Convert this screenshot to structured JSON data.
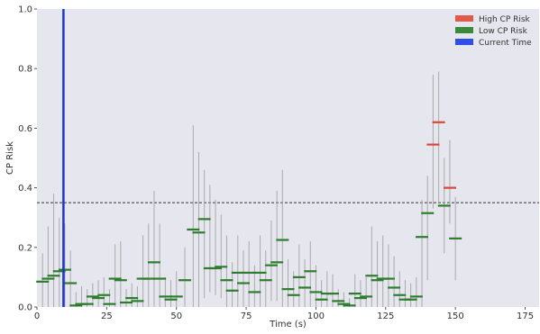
{
  "chart_data": {
    "type": "errorbar",
    "title": "",
    "xlabel": "Time (s)",
    "ylabel": "CP Risk",
    "xlim": [
      0,
      180
    ],
    "ylim": [
      0,
      1.0
    ],
    "grid": false,
    "background": "#e6e6ef",
    "legend_placement": "top-right",
    "x_ticks": [
      0,
      25,
      50,
      75,
      100,
      125,
      150,
      175
    ],
    "y_ticks": [
      0.0,
      0.2,
      0.4,
      0.6,
      0.8,
      1.0
    ],
    "x_tick_labels": [
      "0",
      "25",
      "50",
      "75",
      "100",
      "125",
      "150",
      "175"
    ],
    "y_tick_labels": [
      "0.0",
      "0.2",
      "0.4",
      "0.6",
      "0.8",
      "1.0"
    ],
    "threshold": {
      "value": 0.35,
      "style": "dashed",
      "color": "#333333"
    },
    "current_time": {
      "value": 9.5,
      "color": "#1f36c8"
    },
    "legend": [
      {
        "label": "High CP Risk",
        "color": "#e05a4a"
      },
      {
        "label": "Low CP Risk",
        "color": "#3a8a3a"
      },
      {
        "label": "Current Time",
        "color": "#2f4fe8"
      }
    ],
    "colors": {
      "high": "#d9473a",
      "low": "#2e7d2e",
      "whisker": "#aaaaaa"
    },
    "series": [
      {
        "x": 2,
        "y": 0.085,
        "lo": 0.0,
        "hi": 0.18
      },
      {
        "x": 4,
        "y": 0.095,
        "lo": 0.0,
        "hi": 0.27
      },
      {
        "x": 6,
        "y": 0.105,
        "lo": 0.0,
        "hi": 0.38
      },
      {
        "x": 8,
        "y": 0.12,
        "lo": 0.0,
        "hi": 0.3
      },
      {
        "x": 10,
        "y": 0.125,
        "lo": 0.0,
        "hi": 0.28
      },
      {
        "x": 12,
        "y": 0.08,
        "lo": 0.0,
        "hi": 0.19
      },
      {
        "x": 14,
        "y": 0.005,
        "lo": 0.0,
        "hi": 0.05
      },
      {
        "x": 16,
        "y": 0.01,
        "lo": 0.0,
        "hi": 0.07
      },
      {
        "x": 18,
        "y": 0.01,
        "lo": 0.0,
        "hi": 0.06
      },
      {
        "x": 20,
        "y": 0.035,
        "lo": 0.0,
        "hi": 0.08
      },
      {
        "x": 22,
        "y": 0.03,
        "lo": 0.0,
        "hi": 0.09
      },
      {
        "x": 24,
        "y": 0.04,
        "lo": 0.0,
        "hi": 0.1
      },
      {
        "x": 26,
        "y": 0.01,
        "lo": 0.0,
        "hi": 0.06
      },
      {
        "x": 28,
        "y": 0.095,
        "lo": 0.0,
        "hi": 0.21
      },
      {
        "x": 30,
        "y": 0.09,
        "lo": 0.0,
        "hi": 0.22
      },
      {
        "x": 32,
        "y": 0.015,
        "lo": 0.0,
        "hi": 0.06
      },
      {
        "x": 34,
        "y": 0.03,
        "lo": 0.0,
        "hi": 0.08
      },
      {
        "x": 36,
        "y": 0.02,
        "lo": 0.0,
        "hi": 0.07
      },
      {
        "x": 38,
        "y": 0.095,
        "lo": 0.0,
        "hi": 0.24
      },
      {
        "x": 40,
        "y": 0.095,
        "lo": 0.0,
        "hi": 0.28
      },
      {
        "x": 42,
        "y": 0.15,
        "lo": 0.0,
        "hi": 0.39
      },
      {
        "x": 44,
        "y": 0.095,
        "lo": 0.0,
        "hi": 0.28
      },
      {
        "x": 46,
        "y": 0.035,
        "lo": 0.0,
        "hi": 0.1
      },
      {
        "x": 48,
        "y": 0.025,
        "lo": 0.0,
        "hi": 0.09
      },
      {
        "x": 50,
        "y": 0.035,
        "lo": 0.0,
        "hi": 0.12
      },
      {
        "x": 53,
        "y": 0.09,
        "lo": 0.0,
        "hi": 0.2
      },
      {
        "x": 56,
        "y": 0.26,
        "lo": 0.0,
        "hi": 0.61
      },
      {
        "x": 58,
        "y": 0.25,
        "lo": 0.0,
        "hi": 0.52
      },
      {
        "x": 60,
        "y": 0.295,
        "lo": 0.03,
        "hi": 0.46
      },
      {
        "x": 62,
        "y": 0.13,
        "lo": 0.05,
        "hi": 0.41
      },
      {
        "x": 64,
        "y": 0.13,
        "lo": 0.04,
        "hi": 0.36
      },
      {
        "x": 66,
        "y": 0.135,
        "lo": 0.03,
        "hi": 0.31
      },
      {
        "x": 68,
        "y": 0.09,
        "lo": 0.0,
        "hi": 0.24
      },
      {
        "x": 70,
        "y": 0.055,
        "lo": 0.0,
        "hi": 0.15
      },
      {
        "x": 72,
        "y": 0.115,
        "lo": 0.0,
        "hi": 0.24
      },
      {
        "x": 74,
        "y": 0.08,
        "lo": 0.0,
        "hi": 0.19
      },
      {
        "x": 76,
        "y": 0.115,
        "lo": 0.0,
        "hi": 0.22
      },
      {
        "x": 78,
        "y": 0.05,
        "lo": 0.0,
        "hi": 0.14
      },
      {
        "x": 80,
        "y": 0.115,
        "lo": 0.0,
        "hi": 0.24
      },
      {
        "x": 82,
        "y": 0.09,
        "lo": 0.0,
        "hi": 0.19
      },
      {
        "x": 84,
        "y": 0.14,
        "lo": 0.02,
        "hi": 0.29
      },
      {
        "x": 86,
        "y": 0.15,
        "lo": 0.02,
        "hi": 0.39
      },
      {
        "x": 88,
        "y": 0.225,
        "lo": 0.0,
        "hi": 0.46
      },
      {
        "x": 90,
        "y": 0.06,
        "lo": 0.0,
        "hi": 0.16
      },
      {
        "x": 92,
        "y": 0.04,
        "lo": 0.0,
        "hi": 0.12
      },
      {
        "x": 94,
        "y": 0.1,
        "lo": 0.0,
        "hi": 0.21
      },
      {
        "x": 96,
        "y": 0.065,
        "lo": 0.0,
        "hi": 0.16
      },
      {
        "x": 98,
        "y": 0.12,
        "lo": 0.0,
        "hi": 0.22
      },
      {
        "x": 100,
        "y": 0.05,
        "lo": 0.0,
        "hi": 0.14
      },
      {
        "x": 102,
        "y": 0.025,
        "lo": 0.0,
        "hi": 0.09
      },
      {
        "x": 104,
        "y": 0.045,
        "lo": 0.0,
        "hi": 0.12
      },
      {
        "x": 106,
        "y": 0.045,
        "lo": 0.0,
        "hi": 0.11
      },
      {
        "x": 108,
        "y": 0.02,
        "lo": 0.0,
        "hi": 0.06
      },
      {
        "x": 110,
        "y": 0.01,
        "lo": 0.0,
        "hi": 0.05
      },
      {
        "x": 112,
        "y": 0.005,
        "lo": 0.0,
        "hi": 0.03
      },
      {
        "x": 114,
        "y": 0.045,
        "lo": 0.0,
        "hi": 0.11
      },
      {
        "x": 116,
        "y": 0.03,
        "lo": 0.0,
        "hi": 0.09
      },
      {
        "x": 118,
        "y": 0.035,
        "lo": 0.0,
        "hi": 0.1
      },
      {
        "x": 120,
        "y": 0.105,
        "lo": 0.0,
        "hi": 0.27
      },
      {
        "x": 122,
        "y": 0.09,
        "lo": 0.0,
        "hi": 0.22
      },
      {
        "x": 124,
        "y": 0.095,
        "lo": 0.0,
        "hi": 0.24
      },
      {
        "x": 126,
        "y": 0.095,
        "lo": 0.0,
        "hi": 0.21
      },
      {
        "x": 128,
        "y": 0.065,
        "lo": 0.0,
        "hi": 0.17
      },
      {
        "x": 130,
        "y": 0.04,
        "lo": 0.0,
        "hi": 0.12
      },
      {
        "x": 132,
        "y": 0.025,
        "lo": 0.0,
        "hi": 0.09
      },
      {
        "x": 134,
        "y": 0.025,
        "lo": 0.0,
        "hi": 0.08
      },
      {
        "x": 136,
        "y": 0.035,
        "lo": 0.0,
        "hi": 0.1
      },
      {
        "x": 138,
        "y": 0.235,
        "lo": 0.0,
        "hi": 0.36
      },
      {
        "x": 140,
        "y": 0.315,
        "lo": 0.09,
        "hi": 0.44
      },
      {
        "x": 142,
        "y": 0.545,
        "lo": 0.33,
        "hi": 0.78
      },
      {
        "x": 144,
        "y": 0.62,
        "lo": 0.35,
        "hi": 0.79
      },
      {
        "x": 146,
        "y": 0.34,
        "lo": 0.18,
        "hi": 0.5
      },
      {
        "x": 148,
        "y": 0.4,
        "lo": 0.28,
        "hi": 0.56
      },
      {
        "x": 150,
        "y": 0.23,
        "lo": 0.09,
        "hi": 0.37
      }
    ]
  }
}
